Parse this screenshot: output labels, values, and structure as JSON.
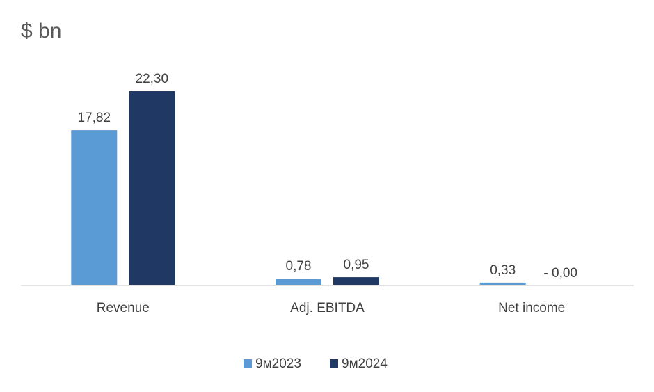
{
  "chart_data": {
    "type": "bar",
    "title": "$ bn",
    "xlabel": "",
    "ylabel": "",
    "categories": [
      "Revenue",
      "Adj. EBITDA",
      "Net income"
    ],
    "series": [
      {
        "name": "9м2023",
        "color": "#5B9BD5",
        "values": [
          17.82,
          0.78,
          0.33
        ],
        "labels": [
          "17,82",
          "0,78",
          "0,33"
        ]
      },
      {
        "name": "9м2024",
        "color": "#1F3864",
        "values": [
          22.3,
          0.95,
          0.0
        ],
        "labels": [
          "22,30",
          "0,95",
          "- 0,00"
        ]
      }
    ],
    "ylim": [
      0,
      22.3
    ],
    "grid": false,
    "legend": "bottom"
  }
}
